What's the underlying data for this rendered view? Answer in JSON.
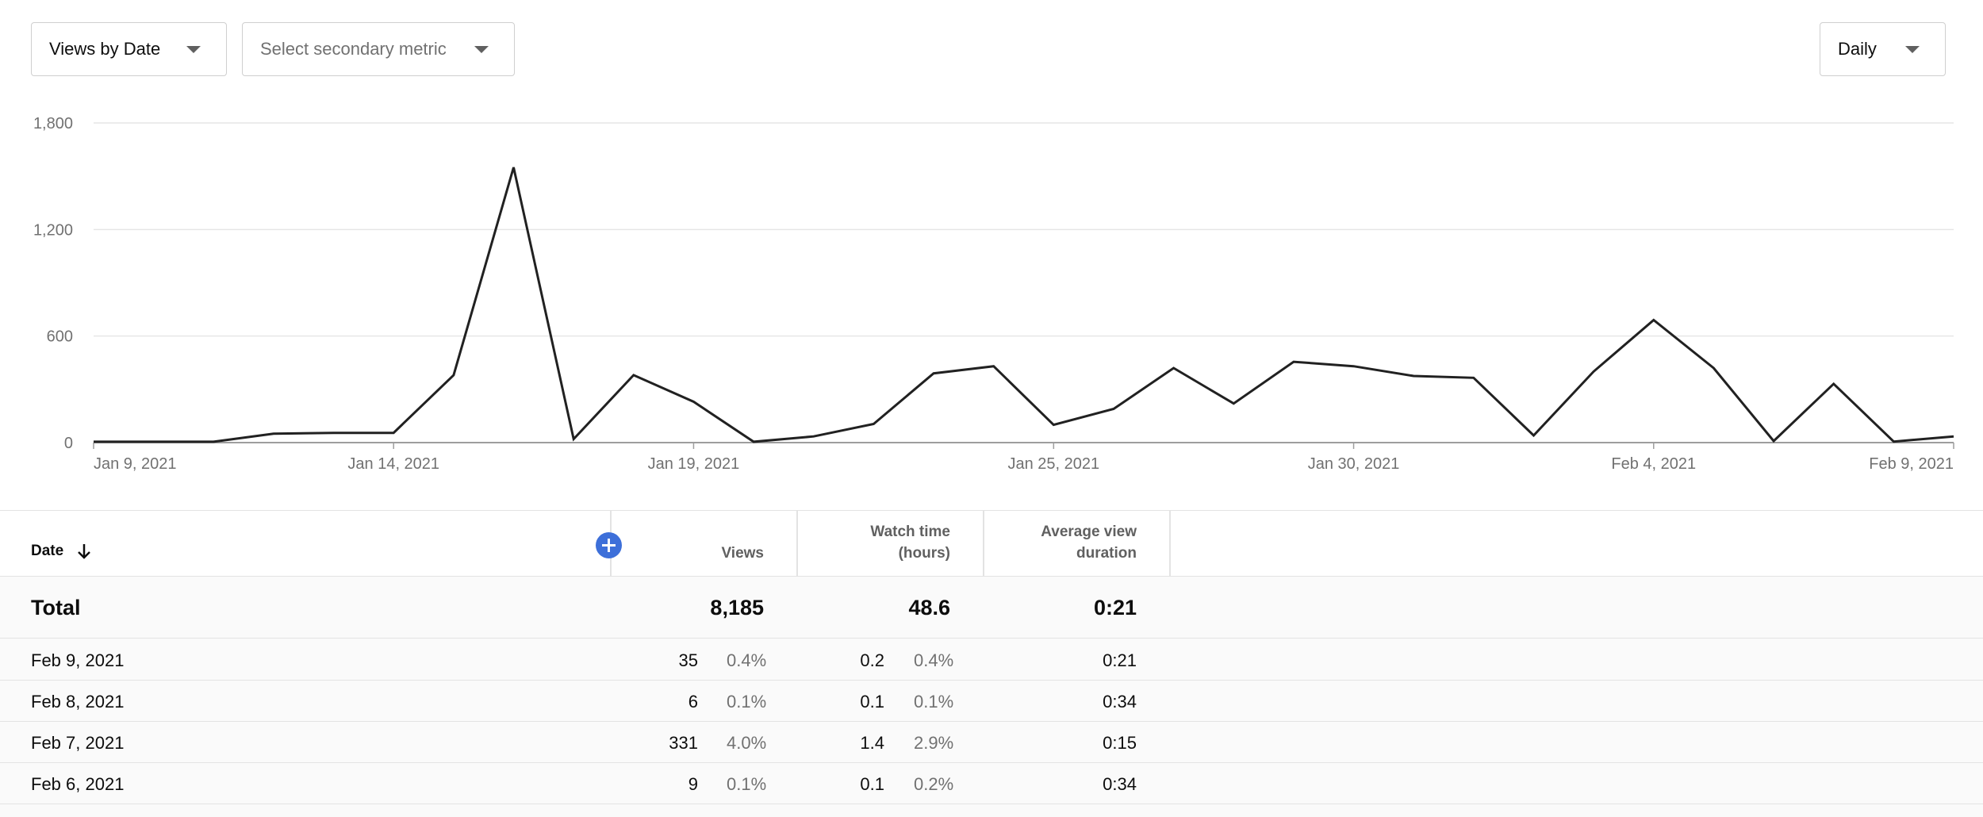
{
  "controls": {
    "metric_dropdown": "Views by Date",
    "secondary_dropdown": "Select secondary metric",
    "period_dropdown": "Daily"
  },
  "chart_data": {
    "type": "line",
    "title": "",
    "xlabel": "",
    "ylabel": "",
    "ylim": [
      0,
      1800
    ],
    "yticks": [
      0,
      600,
      1200,
      1800
    ],
    "ytick_labels": [
      "0",
      "600",
      "1,200",
      "1,800"
    ],
    "grid": true,
    "x_tick_labels": [
      {
        "label": "Jan 9, 2021",
        "index": 0
      },
      {
        "label": "Jan 14, 2021",
        "index": 5
      },
      {
        "label": "Jan 19, 2021",
        "index": 10
      },
      {
        "label": "Jan 25, 2021",
        "index": 16
      },
      {
        "label": "Jan 30, 2021",
        "index": 21
      },
      {
        "label": "Feb 4, 2021",
        "index": 26
      },
      {
        "label": "Feb 9, 2021",
        "index": 31
      }
    ],
    "series": [
      {
        "color": "#212121",
        "x": [
          "Jan 9, 2021",
          "Jan 10, 2021",
          "Jan 11, 2021",
          "Jan 12, 2021",
          "Jan 13, 2021",
          "Jan 14, 2021",
          "Jan 15, 2021",
          "Jan 16, 2021",
          "Jan 17, 2021",
          "Jan 18, 2021",
          "Jan 19, 2021",
          "Jan 20, 2021",
          "Jan 21, 2021",
          "Jan 22, 2021",
          "Jan 23, 2021",
          "Jan 24, 2021",
          "Jan 25, 2021",
          "Jan 26, 2021",
          "Jan 27, 2021",
          "Jan 28, 2021",
          "Jan 29, 2021",
          "Jan 30, 2021",
          "Jan 31, 2021",
          "Feb 1, 2021",
          "Feb 2, 2021",
          "Feb 3, 2021",
          "Feb 4, 2021",
          "Feb 5, 2021",
          "Feb 6, 2021",
          "Feb 7, 2021",
          "Feb 8, 2021",
          "Feb 9, 2021"
        ],
        "values": [
          5,
          5,
          5,
          50,
          55,
          55,
          380,
          1550,
          20,
          380,
          230,
          5,
          35,
          105,
          390,
          430,
          100,
          190,
          420,
          220,
          455,
          430,
          375,
          365,
          40,
          400,
          690,
          420,
          9,
          331,
          6,
          35
        ]
      }
    ]
  },
  "table": {
    "sort_column_label": "Date",
    "columns": [
      {
        "label": "Views"
      },
      {
        "label_line1": "Watch time",
        "label_line2": "(hours)"
      },
      {
        "label_line1": "Average view",
        "label_line2": "duration"
      }
    ],
    "total": {
      "label": "Total",
      "views": "8,185",
      "watch_time": "48.6",
      "avg_duration": "0:21"
    },
    "rows": [
      {
        "date": "Feb 9, 2021",
        "views": "35",
        "views_pct": "0.4%",
        "watch": "0.2",
        "watch_pct": "0.4%",
        "avg": "0:21"
      },
      {
        "date": "Feb 8, 2021",
        "views": "6",
        "views_pct": "0.1%",
        "watch": "0.1",
        "watch_pct": "0.1%",
        "avg": "0:34"
      },
      {
        "date": "Feb 7, 2021",
        "views": "331",
        "views_pct": "4.0%",
        "watch": "1.4",
        "watch_pct": "2.9%",
        "avg": "0:15"
      },
      {
        "date": "Feb 6, 2021",
        "views": "9",
        "views_pct": "0.1%",
        "watch": "0.1",
        "watch_pct": "0.2%",
        "avg": "0:34"
      }
    ]
  }
}
